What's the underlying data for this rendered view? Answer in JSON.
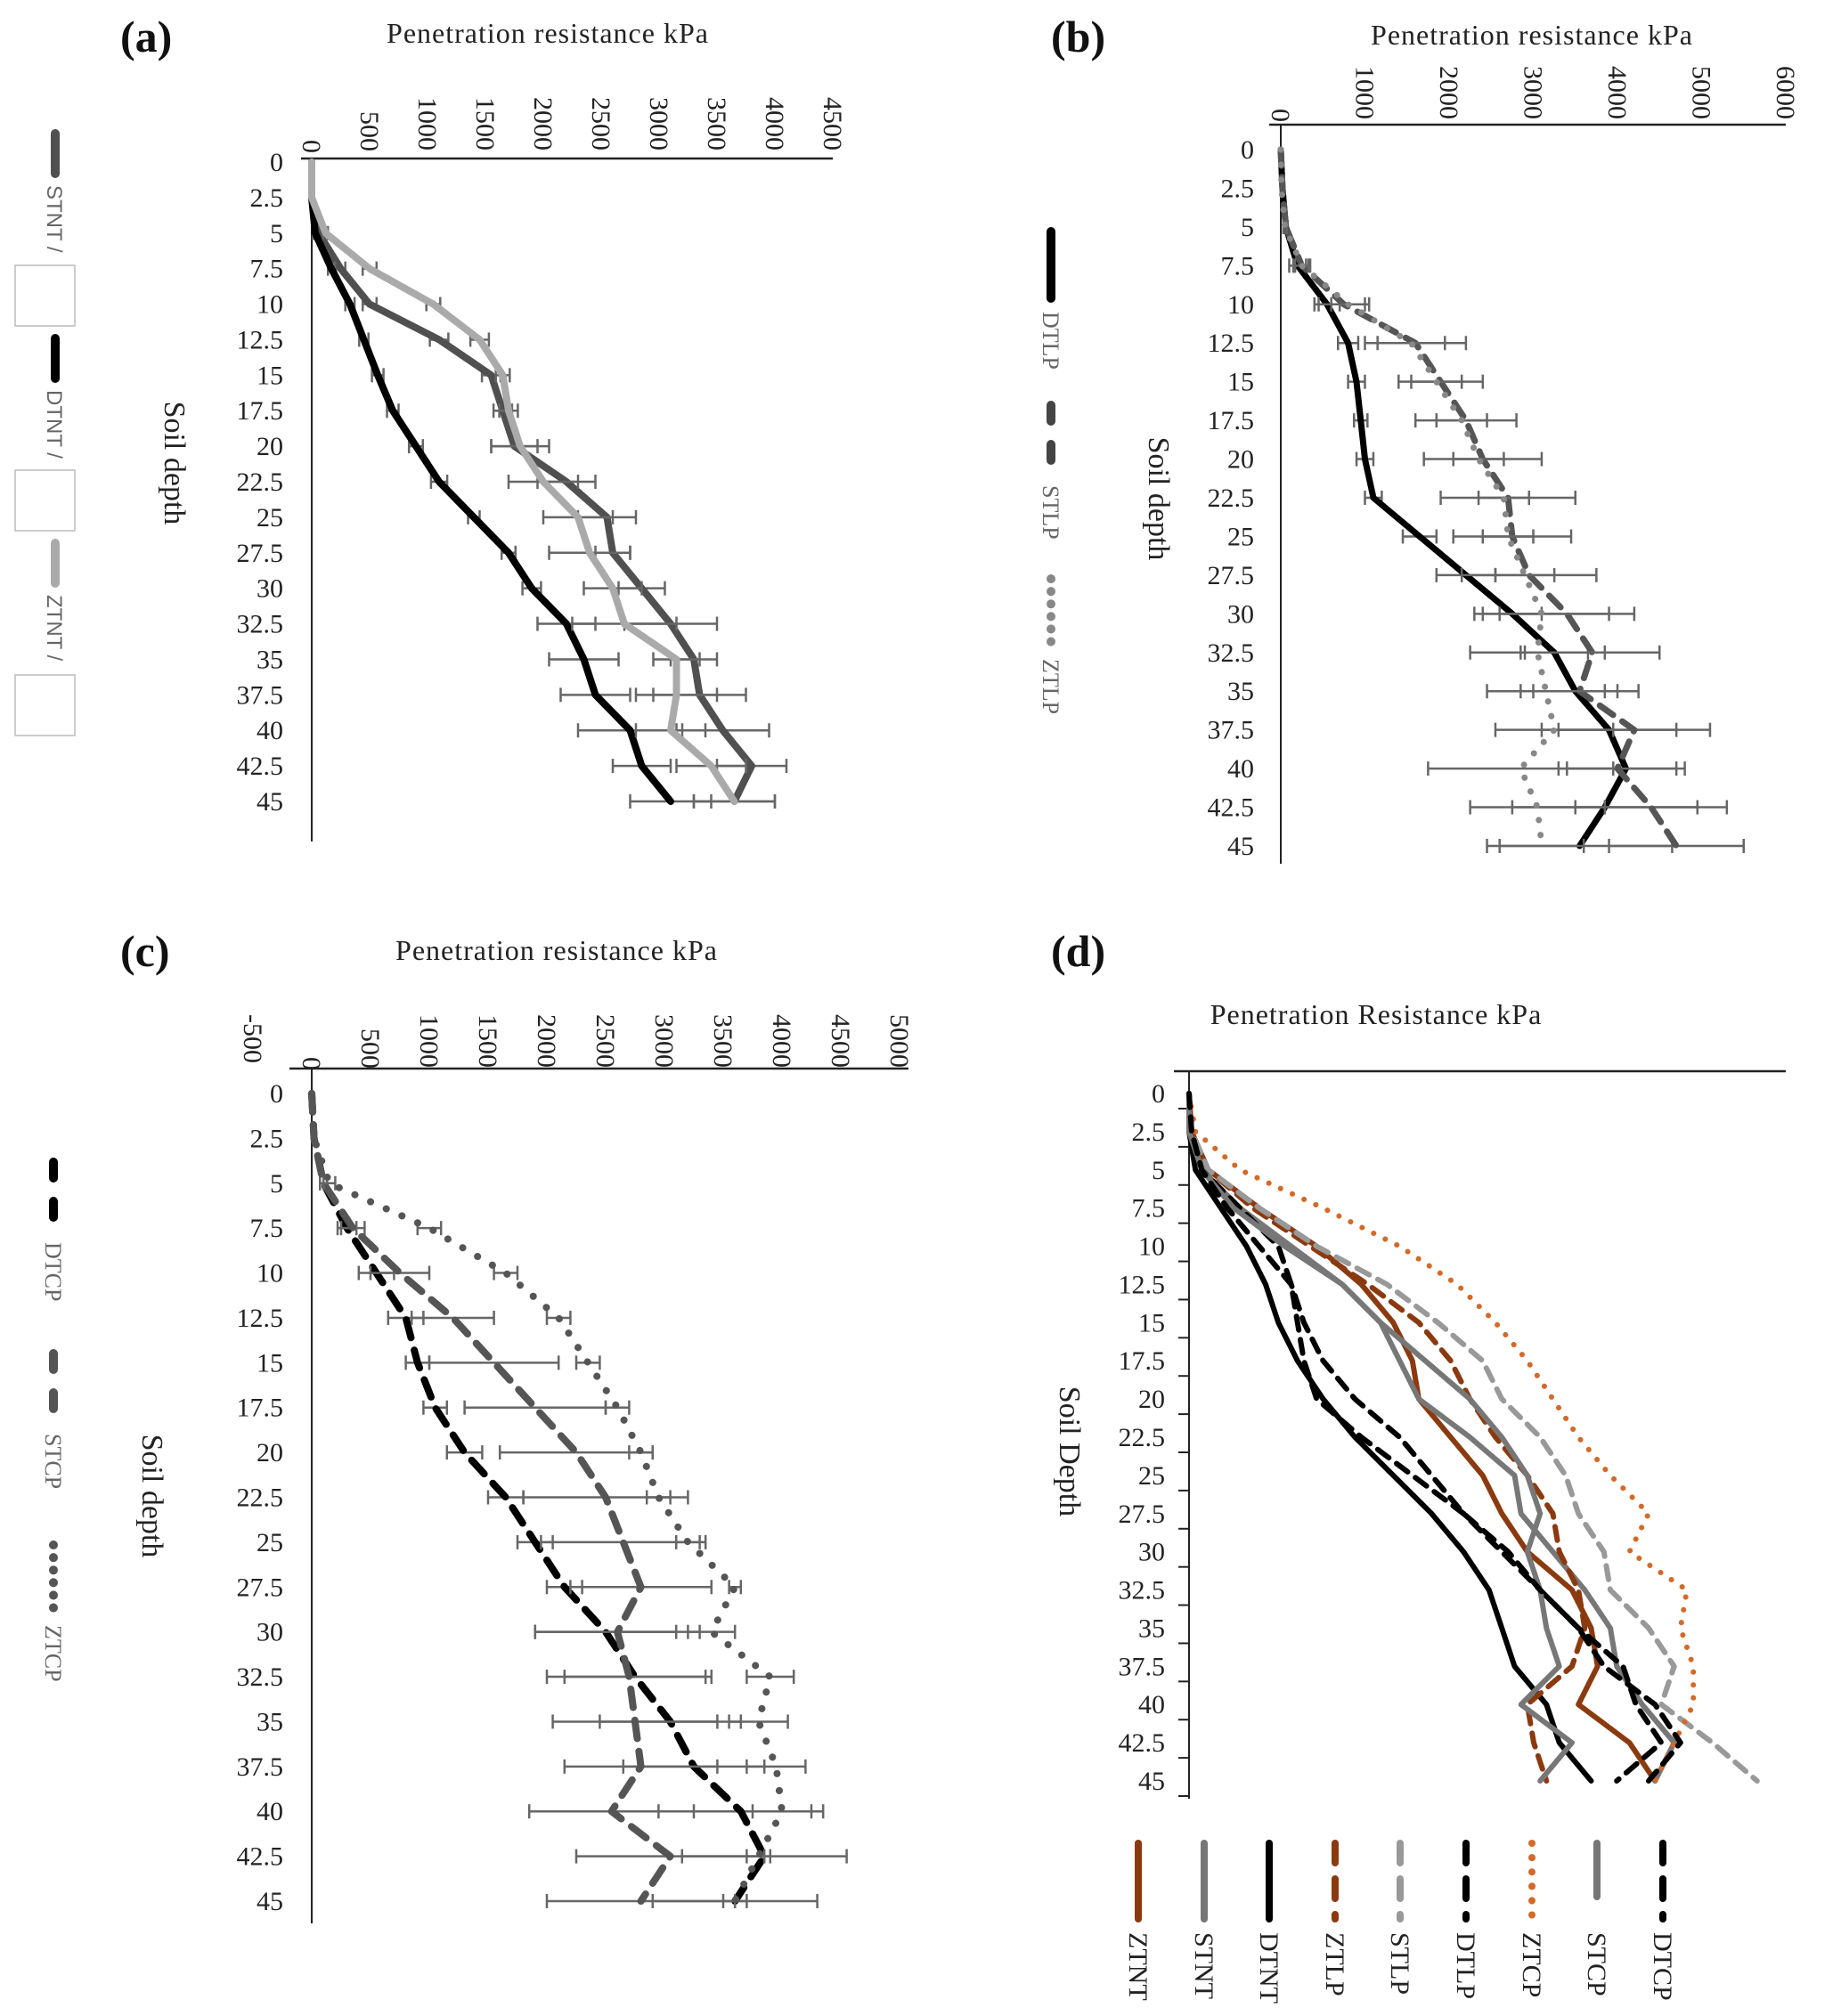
{
  "figure": {
    "panels": [
      "(a)",
      "(b)",
      "(c)",
      "(d)"
    ]
  },
  "chart_data": [
    {
      "id": "a",
      "type": "line",
      "panel_label": "(a)",
      "title": "Penetration resistance kPa",
      "xlabel": "Penetration resistance kPa",
      "ylabel": "Soil depth",
      "x_ticks": [
        "0",
        "500",
        "1000",
        "1500",
        "2000",
        "2500",
        "3000",
        "3500",
        "4000",
        "4500"
      ],
      "xlim": [
        0,
        4500
      ],
      "y_ticks": [
        "0",
        "2.5",
        "5",
        "7.5",
        "10",
        "12.5",
        "15",
        "17.5",
        "20",
        "22.5",
        "25",
        "27.5",
        "30",
        "32.5",
        "35",
        "37.5",
        "40",
        "42.5",
        "45"
      ],
      "ylim": [
        0,
        45
      ],
      "y_inverted": true,
      "error_bars": true,
      "grid": false,
      "legend_position": "left",
      "legend": [
        "STNT",
        "DTNT",
        "ZTNT"
      ],
      "depths": [
        0,
        2.5,
        5,
        7.5,
        10,
        12.5,
        15,
        17.5,
        20,
        22.5,
        25,
        27.5,
        30,
        32.5,
        35,
        37.5,
        40,
        42.5,
        45
      ],
      "series": [
        {
          "name": "STNT",
          "color": "#505050",
          "dash": "solid",
          "values": [
            0,
            0,
            60,
            250,
            500,
            1100,
            1550,
            1650,
            1750,
            2200,
            2550,
            2600,
            2850,
            3100,
            3300,
            3350,
            3550,
            3800,
            3650
          ],
          "err": [
            0,
            0,
            20,
            40,
            60,
            80,
            80,
            80,
            200,
            250,
            250,
            150,
            200,
            400,
            200,
            400,
            400,
            300,
            350
          ]
        },
        {
          "name": "DTNT",
          "color": "#000000",
          "dash": "solid",
          "values": [
            0,
            0,
            30,
            170,
            330,
            450,
            570,
            700,
            900,
            1100,
            1400,
            1700,
            1900,
            2200,
            2350,
            2450,
            2750,
            2850,
            3100
          ],
          "err": [
            0,
            0,
            20,
            30,
            40,
            40,
            50,
            50,
            60,
            70,
            50,
            60,
            80,
            250,
            300,
            300,
            450,
            250,
            350
          ]
        },
        {
          "name": "ZTNT",
          "color": "#aaaaaa",
          "dash": "solid",
          "values": [
            0,
            0,
            120,
            500,
            1050,
            1450,
            1650,
            1700,
            1800,
            2000,
            2300,
            2400,
            2600,
            2700,
            3150,
            3150,
            3100,
            3450,
            3650
          ],
          "err": [
            0,
            0,
            20,
            60,
            60,
            80,
            60,
            80,
            250,
            300,
            300,
            350,
            250,
            450,
            200,
            350,
            300,
            300,
            350
          ]
        }
      ]
    },
    {
      "id": "b",
      "type": "line",
      "panel_label": "(b)",
      "title": "Penetration resistance kPa",
      "xlabel": "Penetration resistance kPa",
      "ylabel": "Soil depth",
      "x_ticks": [
        "0",
        "1000",
        "2000",
        "3000",
        "4000",
        "5000",
        "6000"
      ],
      "xlim": [
        0,
        6000
      ],
      "y_ticks": [
        "0",
        "2.5",
        "5",
        "7.5",
        "10",
        "12.5",
        "15",
        "17.5",
        "20",
        "22.5",
        "25",
        "27.5",
        "30",
        "32.5",
        "35",
        "37.5",
        "40",
        "42.5",
        "45"
      ],
      "ylim": [
        0,
        45
      ],
      "y_inverted": true,
      "error_bars": true,
      "grid": false,
      "legend_position": "left",
      "legend": [
        "DTLP",
        "STLP",
        "ZTLP"
      ],
      "depths": [
        0,
        2.5,
        5,
        7.5,
        10,
        12.5,
        15,
        17.5,
        20,
        22.5,
        25,
        27.5,
        30,
        32.5,
        35,
        37.5,
        40,
        42.5,
        45
      ],
      "series": [
        {
          "name": "DTLP",
          "color": "#000000",
          "dash": "solid",
          "values": [
            0,
            20,
            60,
            200,
            550,
            800,
            900,
            950,
            1000,
            1100,
            1650,
            2200,
            2750,
            3250,
            3500,
            3900,
            4100,
            3850,
            3550
          ],
          "err": [
            0,
            0,
            20,
            100,
            150,
            120,
            100,
            80,
            100,
            100,
            200,
            350,
            350,
            400,
            500,
            800,
            700,
            1100,
            1100
          ]
        },
        {
          "name": "STLP",
          "color": "#555555",
          "dash": "dash",
          "values": [
            0,
            20,
            60,
            250,
            750,
            1600,
            1900,
            2200,
            2400,
            2700,
            2750,
            2950,
            3400,
            3700,
            3550,
            4200,
            4000,
            4400,
            4700
          ],
          "err": [
            0,
            0,
            20,
            100,
            300,
            600,
            500,
            600,
            700,
            800,
            700,
            800,
            800,
            800,
            700,
            900,
            700,
            900,
            800
          ]
        },
        {
          "name": "ZTLP",
          "color": "#888888",
          "dash": "dot",
          "values": [
            0,
            10,
            50,
            250,
            800,
            1550,
            1850,
            2150,
            2350,
            2650,
            2700,
            2900,
            3100,
            3050,
            3150,
            3250,
            2850,
            3050,
            3100
          ],
          "err": [
            0,
            0,
            20,
            80,
            200,
            400,
            300,
            300,
            300,
            300,
            300,
            350,
            800,
            800,
            700,
            700,
            1100,
            800,
            500
          ]
        }
      ]
    },
    {
      "id": "c",
      "type": "line",
      "panel_label": "(c)",
      "title": "Penetration resistance kPa",
      "xlabel": "Penetration resistance kPa",
      "ylabel": "Soil depth",
      "x_ticks": [
        "-500",
        "0",
        "500",
        "1000",
        "1500",
        "2000",
        "2500",
        "3000",
        "3500",
        "4000",
        "4500",
        "5000"
      ],
      "xlim": [
        -500,
        5000
      ],
      "y_ticks": [
        "0",
        "2.5",
        "5",
        "7.5",
        "10",
        "12.5",
        "15",
        "17.5",
        "20",
        "22.5",
        "25",
        "27.5",
        "30",
        "32.5",
        "35",
        "37.5",
        "40",
        "42.5",
        "45"
      ],
      "ylim": [
        0,
        45
      ],
      "y_inverted": true,
      "error_bars": true,
      "grid": false,
      "legend_position": "left",
      "legend": [
        "DTCP",
        "STCP",
        "ZTCP"
      ],
      "depths": [
        0,
        2.5,
        5,
        7.5,
        10,
        12.5,
        15,
        17.5,
        20,
        22.5,
        25,
        27.5,
        30,
        32.5,
        35,
        37.5,
        40,
        42.5,
        45
      ],
      "series": [
        {
          "name": "DTCP",
          "color": "#000000",
          "dash": "dash",
          "values": [
            0,
            20,
            100,
            300,
            550,
            800,
            900,
            1050,
            1300,
            1650,
            1900,
            2150,
            2500,
            2750,
            3050,
            3250,
            3650,
            3850,
            3600
          ],
          "err": [
            0,
            0,
            30,
            80,
            150,
            150,
            100,
            100,
            150,
            150,
            150,
            150,
            600,
            600,
            600,
            600,
            700,
            700,
            700
          ]
        },
        {
          "name": "STCP",
          "color": "#555555",
          "dash": "dash",
          "values": [
            0,
            20,
            100,
            350,
            750,
            1200,
            1550,
            1900,
            2250,
            2500,
            2650,
            2800,
            2600,
            2700,
            2750,
            2800,
            2550,
            3050,
            2800
          ],
          "err": [
            0,
            0,
            30,
            100,
            250,
            350,
            550,
            600,
            650,
            700,
            700,
            600,
            700,
            700,
            700,
            650,
            700,
            800,
            800
          ]
        },
        {
          "name": "ZTCP",
          "color": "#555555",
          "dash": "dot",
          "values": [
            0,
            20,
            150,
            1000,
            1650,
            2100,
            2350,
            2600,
            2800,
            2950,
            3200,
            3600,
            3400,
            3900,
            3800,
            3950,
            4000,
            3800,
            3600
          ],
          "err": [
            0,
            0,
            50,
            100,
            100,
            100,
            100,
            100,
            100,
            100,
            100,
            50,
            200,
            200,
            250,
            250,
            250,
            100,
            100
          ]
        }
      ]
    },
    {
      "id": "d",
      "type": "line",
      "panel_label": "(d)",
      "title": "Penetration Resistance kPa",
      "xlabel": "Penetration Resistance kPa",
      "ylabel": "Soil Depth",
      "x_ticks": [],
      "xlim": [
        0,
        4500
      ],
      "y_ticks": [
        "0",
        "2.5",
        "5",
        "7.5",
        "10",
        "12.5",
        "15",
        "17.5",
        "20",
        "22.5",
        "25",
        "27.5",
        "30",
        "32.5",
        "35",
        "37.5",
        "40",
        "42.5",
        "45"
      ],
      "ylim": [
        0,
        45
      ],
      "y_inverted": true,
      "error_bars": false,
      "grid": false,
      "legend_position": "bottom",
      "legend": [
        "ZTNT",
        "STNT",
        "DTNT",
        "ZTLP",
        "STLP",
        "DTLP",
        "ZTCP",
        "STCP",
        "DTCP"
      ],
      "depths": [
        0,
        2.5,
        5,
        7.5,
        10,
        12.5,
        15,
        17.5,
        20,
        22.5,
        25,
        27.5,
        30,
        32.5,
        35,
        37.5,
        40,
        42.5,
        45
      ],
      "series": [
        {
          "name": "ZTNT",
          "color": "#8b3a0f",
          "dash": "solid",
          "values": [
            0,
            20,
            150,
            550,
            1000,
            1350,
            1600,
            1750,
            1800,
            2050,
            2300,
            2450,
            2650,
            3000,
            3150,
            3200,
            3050,
            3450,
            3650
          ]
        },
        {
          "name": "STNT",
          "color": "#777777",
          "dash": "solid",
          "values": [
            0,
            0,
            100,
            400,
            800,
            1200,
            1500,
            1650,
            1800,
            2200,
            2550,
            2600,
            2850,
            3100,
            3300,
            3350,
            3550,
            3800,
            3650
          ]
        },
        {
          "name": "DTNT",
          "color": "#000000",
          "dash": "solid",
          "values": [
            0,
            0,
            50,
            250,
            450,
            600,
            700,
            850,
            1050,
            1300,
            1600,
            1900,
            2150,
            2350,
            2450,
            2550,
            2800,
            2900,
            3150
          ]
        },
        {
          "name": "ZTLP",
          "color": "#8b3a0f",
          "dash": "dash",
          "values": [
            0,
            20,
            150,
            500,
            950,
            1400,
            1800,
            2050,
            2200,
            2400,
            2650,
            2850,
            2900,
            3050,
            3100,
            3000,
            2650,
            2700,
            2800
          ]
        },
        {
          "name": "STLP",
          "color": "#999999",
          "dash": "dash",
          "values": [
            0,
            20,
            150,
            550,
            1000,
            1550,
            1950,
            2300,
            2450,
            2750,
            2950,
            3050,
            3250,
            3300,
            3600,
            3800,
            3700,
            4100,
            4450
          ]
        },
        {
          "name": "DTLP",
          "color": "#000000",
          "dash": "dash",
          "values": [
            0,
            20,
            100,
            400,
            700,
            800,
            850,
            900,
            1000,
            1350,
            1750,
            2150,
            2450,
            2750,
            3050,
            3400,
            3500,
            3700,
            3350
          ]
        },
        {
          "name": "ZTCP",
          "color": "#d26a28",
          "dash": "dot",
          "values": [
            0,
            50,
            400,
            1050,
            1650,
            2100,
            2400,
            2650,
            2850,
            3050,
            3300,
            3600,
            3450,
            3900,
            3850,
            3950,
            3950,
            3800,
            3650
          ]
        },
        {
          "name": "STCP",
          "color": "#777777",
          "dash": "solid",
          "values": [
            0,
            0,
            100,
            350,
            750,
            1200,
            1500,
            1850,
            2200,
            2450,
            2650,
            2750,
            2650,
            2750,
            2800,
            2900,
            2600,
            3000,
            2750
          ]
        },
        {
          "name": "DTCP",
          "color": "#000000",
          "dash": "dash",
          "values": [
            0,
            20,
            100,
            300,
            550,
            800,
            900,
            1050,
            1300,
            1650,
            1900,
            2150,
            2500,
            2750,
            3050,
            3250,
            3650,
            3850,
            3600
          ]
        }
      ]
    }
  ]
}
